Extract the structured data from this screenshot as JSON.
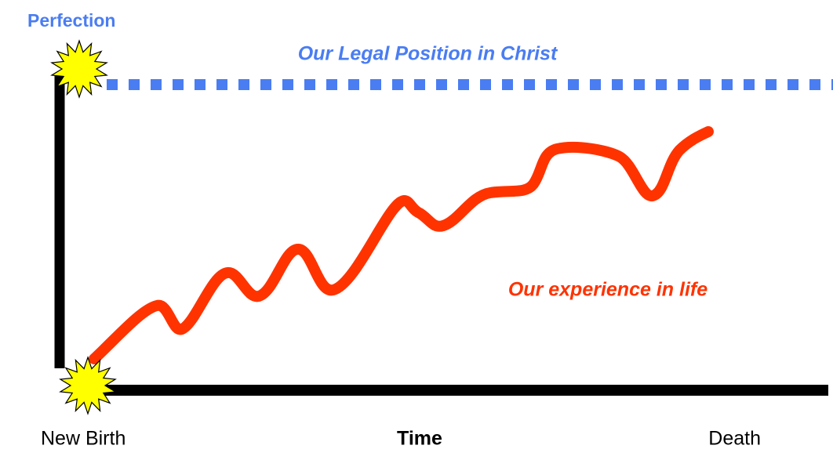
{
  "top_label": "Perfection",
  "legal_line_label": "Our Legal Position in Christ",
  "experience_label": "Our experience in life",
  "x_axis": {
    "start_label": "New Birth",
    "title": "Time",
    "end_label": "Death"
  }
}
